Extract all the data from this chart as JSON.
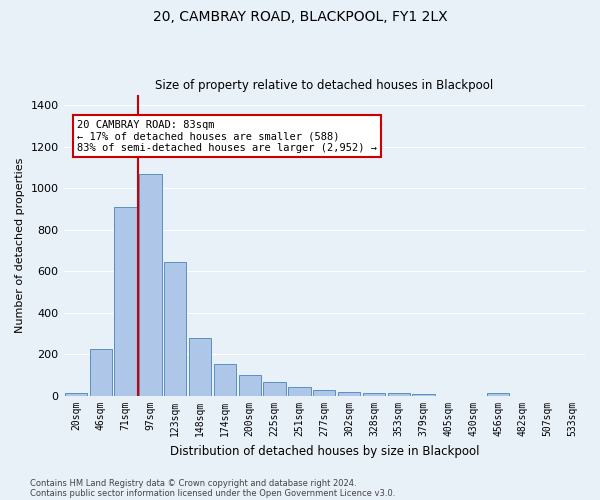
{
  "title": "20, CAMBRAY ROAD, BLACKPOOL, FY1 2LX",
  "subtitle": "Size of property relative to detached houses in Blackpool",
  "xlabel": "Distribution of detached houses by size in Blackpool",
  "ylabel": "Number of detached properties",
  "categories": [
    "20sqm",
    "46sqm",
    "71sqm",
    "97sqm",
    "123sqm",
    "148sqm",
    "174sqm",
    "200sqm",
    "225sqm",
    "251sqm",
    "277sqm",
    "302sqm",
    "328sqm",
    "353sqm",
    "379sqm",
    "405sqm",
    "430sqm",
    "456sqm",
    "482sqm",
    "507sqm",
    "533sqm"
  ],
  "values": [
    15,
    225,
    910,
    1070,
    645,
    280,
    155,
    100,
    68,
    42,
    28,
    20,
    15,
    15,
    10,
    0,
    0,
    15,
    0,
    0,
    0
  ],
  "bar_color": "#aec6e8",
  "bar_edge_color": "#5a8fc0",
  "vline_color": "#cc0000",
  "vline_x_index": 2.5,
  "annotation_text": "20 CAMBRAY ROAD: 83sqm\n← 17% of detached houses are smaller (588)\n83% of semi-detached houses are larger (2,952) →",
  "annotation_box_color": "#ffffff",
  "annotation_box_edge": "#cc0000",
  "ylim": [
    0,
    1450
  ],
  "yticks": [
    0,
    200,
    400,
    600,
    800,
    1000,
    1200,
    1400
  ],
  "bg_color": "#e8f0f8",
  "grid_color": "#ffffff",
  "footer_line1": "Contains HM Land Registry data © Crown copyright and database right 2024.",
  "footer_line2": "Contains public sector information licensed under the Open Government Licence v3.0."
}
